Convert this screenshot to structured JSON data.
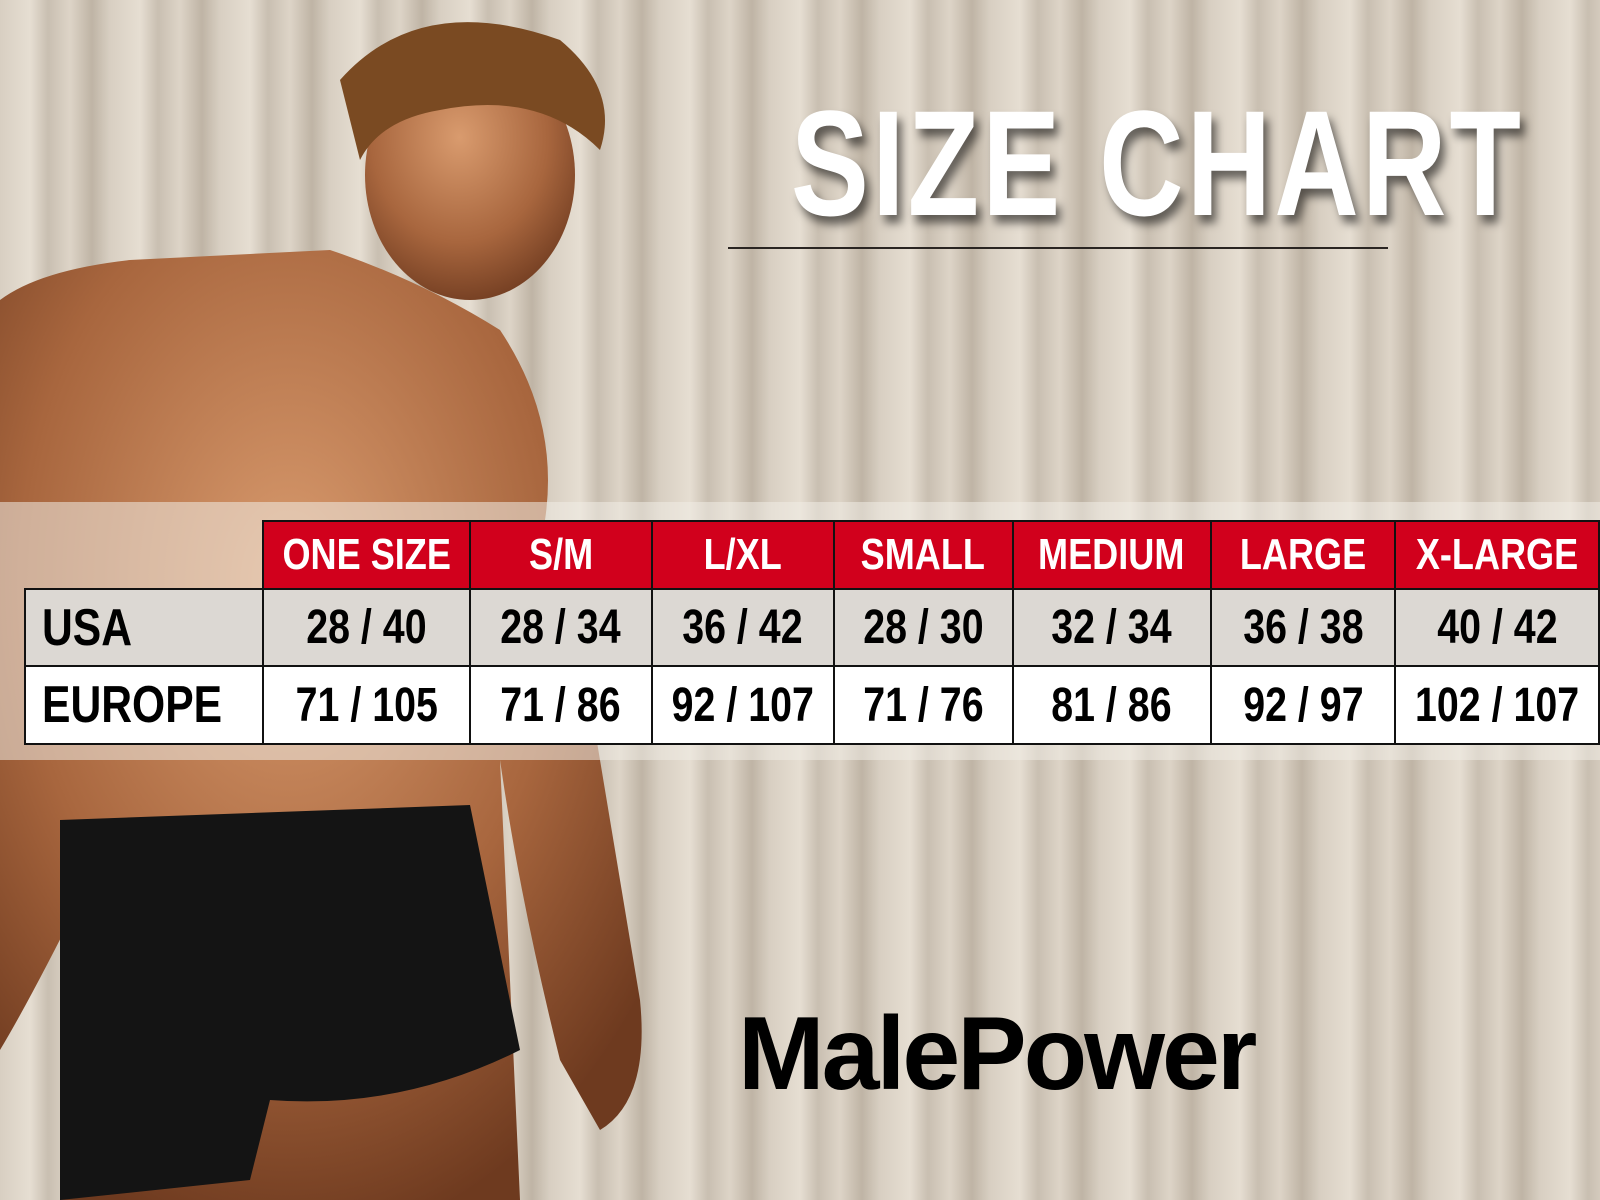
{
  "title": "SIZE CHART",
  "brand": "MalePower",
  "colors": {
    "header_red": "#d1001c",
    "usa_row": "#dcd8d3",
    "europe_row": "#ffffff"
  },
  "size_table": {
    "headers": [
      "ONE SIZE",
      "S/M",
      "L/XL",
      "SMALL",
      "MEDIUM",
      "LARGE",
      "X-LARGE"
    ],
    "rows": [
      {
        "label": "USA",
        "values": [
          "28 / 40",
          "28 / 34",
          "36 / 42",
          "28 / 30",
          "32 / 34",
          "36 / 38",
          "40 / 42"
        ]
      },
      {
        "label": "EUROPE",
        "values": [
          "71 / 105",
          "71 / 86",
          "92 / 107",
          "71 / 76",
          "81 / 86",
          "92 / 97",
          "102 / 107"
        ]
      }
    ]
  }
}
